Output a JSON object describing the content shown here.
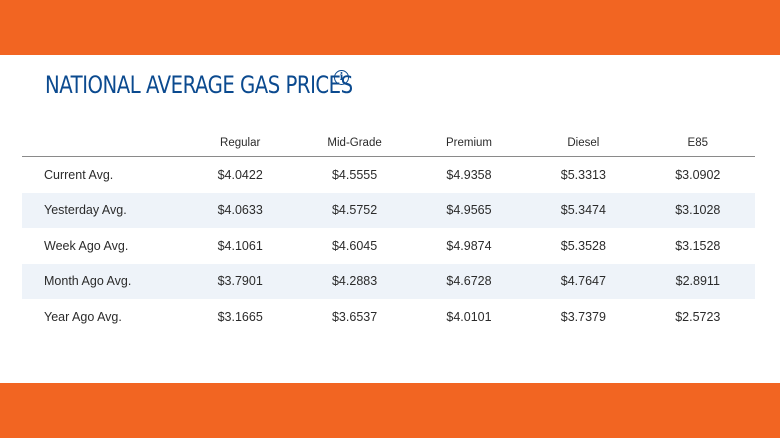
{
  "title": "NATIONAL AVERAGE GAS PRICES",
  "info_icon": "info-icon",
  "colors": {
    "accent": "#f26522",
    "title": "#0b4a8f",
    "stripe": "#eef3f9"
  },
  "table": {
    "columns": [
      "Regular",
      "Mid-Grade",
      "Premium",
      "Diesel",
      "E85"
    ],
    "rows": [
      {
        "label": "Current Avg.",
        "values": [
          "$4.0422",
          "$4.5555",
          "$4.9358",
          "$5.3313",
          "$3.0902"
        ]
      },
      {
        "label": "Yesterday Avg.",
        "values": [
          "$4.0633",
          "$4.5752",
          "$4.9565",
          "$5.3474",
          "$3.1028"
        ]
      },
      {
        "label": "Week Ago Avg.",
        "values": [
          "$4.1061",
          "$4.6045",
          "$4.9874",
          "$5.3528",
          "$3.1528"
        ]
      },
      {
        "label": "Month Ago Avg.",
        "values": [
          "$3.7901",
          "$4.2883",
          "$4.6728",
          "$4.7647",
          "$2.8911"
        ]
      },
      {
        "label": "Year Ago Avg.",
        "values": [
          "$3.1665",
          "$3.6537",
          "$4.0101",
          "$3.7379",
          "$2.5723"
        ]
      }
    ]
  }
}
